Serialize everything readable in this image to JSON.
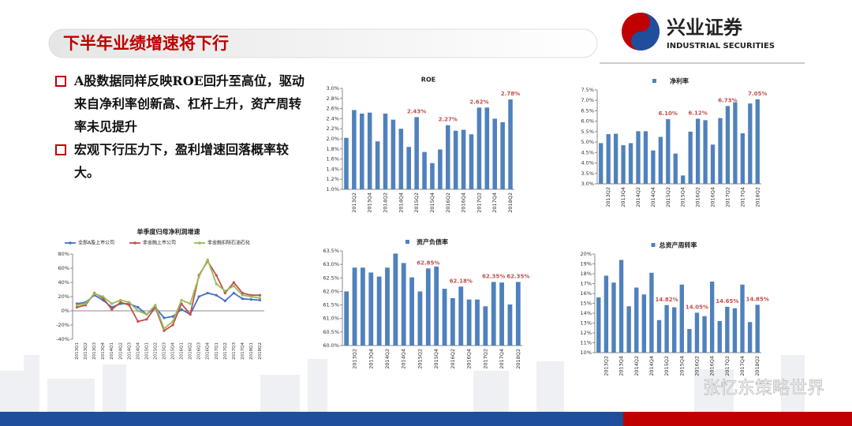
{
  "header": {
    "title": "下半年业绩增速将下行",
    "logo_cn": "兴业证券",
    "logo_en": "INDUSTRIAL SECURITIES"
  },
  "bullets": [
    "A股数据同样反映ROE回升至高位，驱动来自净利率创新高、杠杆上升，资产周转率未见提升",
    "宏观下行压力下，盈利增速回落概率较大。"
  ],
  "watermark": "张忆东策略世界",
  "chart_data": [
    {
      "type": "bar",
      "title": "ROE",
      "color": "#4f81bd",
      "categories": [
        null,
        "2013Q2",
        null,
        "2013Q4",
        null,
        "2014Q2",
        null,
        "2014Q4",
        null,
        "2015Q2",
        null,
        "2015Q4",
        null,
        "2016Q2",
        null,
        "2016Q4",
        null,
        "2017Q2",
        null,
        "2017Q4",
        null,
        "2018Q2"
      ],
      "values": [
        2.02,
        2.57,
        2.5,
        2.52,
        1.95,
        2.5,
        2.38,
        2.2,
        1.84,
        2.43,
        1.74,
        1.52,
        1.79,
        2.27,
        2.16,
        2.18,
        2.09,
        2.62,
        2.62,
        2.4,
        2.33,
        2.78
      ],
      "value_labels": [
        null,
        null,
        null,
        null,
        null,
        null,
        null,
        null,
        null,
        "2.43%",
        null,
        null,
        null,
        "2.27%",
        null,
        null,
        null,
        "2.62%",
        null,
        null,
        null,
        "2.78%"
      ],
      "ylim": [
        1.0,
        3.0
      ],
      "yticks": [
        {
          "value": 1.0,
          "label": "1.0%"
        },
        {
          "value": 1.2,
          "label": "1.2%"
        },
        {
          "value": 1.4,
          "label": "1.4%"
        },
        {
          "value": 1.6,
          "label": "1.6%"
        },
        {
          "value": 1.8,
          "label": "1.8%"
        },
        {
          "value": 2.0,
          "label": "2.0%"
        },
        {
          "value": 2.2,
          "label": "2.2%"
        },
        {
          "value": 2.4,
          "label": "2.4%"
        },
        {
          "value": 2.6,
          "label": "2.6%"
        },
        {
          "value": 2.8,
          "label": "2.8%"
        },
        {
          "value": 3.0,
          "label": "3.0%"
        }
      ]
    },
    {
      "type": "bar",
      "title": "净利率",
      "color": "#4f81bd",
      "categories": [
        null,
        "2013Q2",
        null,
        "2013Q4",
        null,
        "2014Q2",
        null,
        "2014Q4",
        null,
        "2015Q2",
        null,
        "2015Q4",
        null,
        "2016Q2",
        null,
        "2016Q4",
        null,
        "2017Q2",
        null,
        "2017Q4",
        null,
        "2018Q2"
      ],
      "values": [
        4.95,
        5.38,
        5.4,
        4.85,
        4.95,
        5.52,
        5.52,
        4.6,
        5.25,
        6.1,
        4.45,
        3.4,
        5.5,
        6.12,
        6.05,
        4.88,
        6.15,
        6.73,
        6.9,
        5.42,
        6.85,
        7.05
      ],
      "value_labels": [
        null,
        null,
        null,
        null,
        null,
        null,
        null,
        null,
        null,
        "6.10%",
        null,
        null,
        null,
        "6.12%",
        null,
        null,
        null,
        "6.73%",
        null,
        null,
        null,
        "7.05%"
      ],
      "ylim": [
        3.0,
        7.5
      ],
      "yticks": [
        {
          "value": 3.0,
          "label": "3.0%"
        },
        {
          "value": 3.5,
          "label": "3.5%"
        },
        {
          "value": 4.0,
          "label": "4.0%"
        },
        {
          "value": 4.5,
          "label": "4.5%"
        },
        {
          "value": 5.0,
          "label": "5.0%"
        },
        {
          "value": 5.5,
          "label": "5.5%"
        },
        {
          "value": 6.0,
          "label": "6.0%"
        },
        {
          "value": 6.5,
          "label": "6.5%"
        },
        {
          "value": 7.0,
          "label": "7.0%"
        },
        {
          "value": 7.5,
          "label": "7.5%"
        }
      ]
    },
    {
      "type": "line",
      "title": "单季度归母净利润增速",
      "legend": "top",
      "categories": [
        "2013Q1",
        "2013Q2",
        "2013Q3",
        "2013Q4",
        "2014Q1",
        "2014Q2",
        "2014Q3",
        "2014Q4",
        "2015Q1",
        "2015Q2",
        "2015Q3",
        "2015Q4",
        "2016Q1",
        "2016Q2",
        "2016Q3",
        "2016Q4",
        "2017Q1",
        "2017Q2",
        "2017Q3",
        "2017Q4",
        "2018Q1",
        "2018Q2"
      ],
      "series": [
        {
          "name": "全部A股上市公司",
          "color": "#4472c4",
          "values": [
            10,
            12,
            22,
            15,
            5,
            10,
            10,
            5,
            -5,
            5,
            -10,
            -8,
            2,
            -5,
            20,
            25,
            22,
            14,
            25,
            17,
            16,
            15
          ]
        },
        {
          "name": "非金融上市公司",
          "color": "#c0504d",
          "values": [
            5,
            8,
            25,
            18,
            2,
            12,
            8,
            -15,
            -12,
            5,
            -28,
            -20,
            10,
            -5,
            50,
            70,
            50,
            25,
            40,
            25,
            22,
            22
          ]
        },
        {
          "name": "非金融扣除石油石化",
          "color": "#9bbb59",
          "values": [
            8,
            10,
            24,
            20,
            10,
            15,
            12,
            0,
            -5,
            8,
            -25,
            -15,
            15,
            10,
            48,
            72,
            38,
            28,
            35,
            22,
            20,
            18
          ]
        }
      ],
      "ylim": [
        -40,
        80
      ],
      "yticks": [
        {
          "value": -40,
          "label": "-40%"
        },
        {
          "value": -20,
          "label": "-20%"
        },
        {
          "value": 0,
          "label": "0%"
        },
        {
          "value": 20,
          "label": "20%"
        },
        {
          "value": 40,
          "label": "40%"
        },
        {
          "value": 60,
          "label": "60%"
        },
        {
          "value": 80,
          "label": "80%"
        }
      ]
    },
    {
      "type": "bar",
      "title": "资产负债率",
      "color": "#4f81bd",
      "categories": [
        null,
        "2013Q2",
        null,
        "2013Q4",
        null,
        "2014Q2",
        null,
        "2014Q4",
        null,
        "2015Q2",
        null,
        "2015Q4",
        null,
        "2016Q2",
        null,
        "2016Q4",
        null,
        "2017Q2",
        null,
        "2017Q4",
        null,
        "2018Q2"
      ],
      "values": [
        62.0,
        62.88,
        62.88,
        62.7,
        62.55,
        62.88,
        63.4,
        63.05,
        62.52,
        62.0,
        62.85,
        62.92,
        62.1,
        61.75,
        62.18,
        61.7,
        61.7,
        61.45,
        62.35,
        62.33,
        61.52,
        62.35
      ],
      "value_labels": [
        null,
        null,
        null,
        null,
        null,
        null,
        null,
        null,
        null,
        null,
        "62.85%",
        null,
        null,
        null,
        "62.18%",
        null,
        null,
        null,
        "62.35%",
        null,
        null,
        "62.35%"
      ],
      "ylim": [
        60.0,
        63.5
      ],
      "yticks": [
        {
          "value": 60.0,
          "label": "60.0%"
        },
        {
          "value": 60.5,
          "label": "60.5%"
        },
        {
          "value": 61.0,
          "label": "61.0%"
        },
        {
          "value": 61.5,
          "label": "61.5%"
        },
        {
          "value": 62.0,
          "label": "62.0%"
        },
        {
          "value": 62.5,
          "label": "62.5%"
        },
        {
          "value": 63.0,
          "label": "63.0%"
        },
        {
          "value": 63.5,
          "label": "63.5%"
        }
      ]
    },
    {
      "type": "bar",
      "title": "总资产周转率",
      "color": "#4f81bd",
      "categories": [
        null,
        "2013Q2",
        null,
        "2013Q4",
        null,
        "2014Q2",
        null,
        "2014Q4",
        null,
        "2015Q2",
        null,
        "2015Q4",
        null,
        "2016Q2",
        null,
        "2016Q4",
        null,
        "2017Q2",
        null,
        "2017Q4",
        null,
        "2018Q2"
      ],
      "values": [
        15.6,
        17.8,
        17.1,
        19.4,
        14.7,
        16.6,
        15.9,
        18.1,
        13.3,
        14.82,
        14.6,
        16.9,
        12.4,
        14.05,
        13.7,
        17.2,
        13.2,
        14.65,
        14.5,
        16.9,
        13.1,
        14.85
      ],
      "value_labels": [
        null,
        null,
        null,
        null,
        null,
        null,
        null,
        null,
        null,
        "14.82%",
        null,
        null,
        null,
        "14.05%",
        null,
        null,
        null,
        "14.65%",
        null,
        null,
        null,
        "14.85%"
      ],
      "ylim": [
        10,
        20
      ],
      "yticks": [
        {
          "value": 10,
          "label": "10%"
        },
        {
          "value": 11,
          "label": "11%"
        },
        {
          "value": 12,
          "label": "12%"
        },
        {
          "value": 13,
          "label": "13%"
        },
        {
          "value": 14,
          "label": "14%"
        },
        {
          "value": 15,
          "label": "15%"
        },
        {
          "value": 16,
          "label": "16%"
        },
        {
          "value": 17,
          "label": "17%"
        },
        {
          "value": 18,
          "label": "18%"
        },
        {
          "value": 19,
          "label": "19%"
        },
        {
          "value": 20,
          "label": "20%"
        }
      ]
    }
  ]
}
